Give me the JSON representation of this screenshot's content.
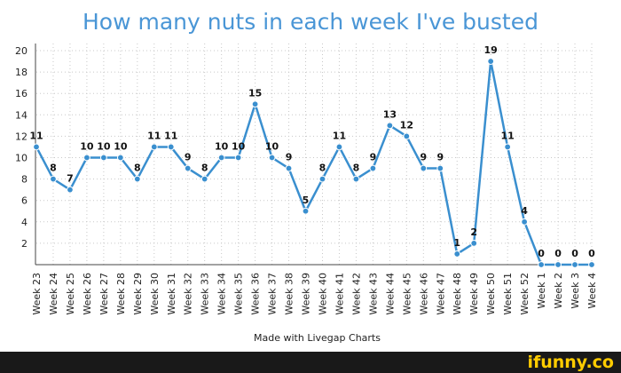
{
  "chart_data": {
    "type": "line",
    "title": "How many nuts in each week I've busted",
    "caption": "Made with Livegap Charts",
    "categories": [
      "Week 23",
      "Week 24",
      "Week 25",
      "Week 26",
      "Week 27",
      "Week 28",
      "Week 29",
      "Week 30",
      "Week 31",
      "Week 32",
      "Week 33",
      "Week 34",
      "Week 35",
      "Week 36",
      "Week 37",
      "Week 38",
      "Week 39",
      "Week 40",
      "Week 41",
      "Week 42",
      "Week 43",
      "Week 44",
      "Week 45",
      "Week 46",
      "Week 47",
      "Week 48",
      "Week 49",
      "Week 50",
      "Week 51",
      "Week 52",
      "Week 1",
      "Week 2",
      "Week 3",
      "Week 4"
    ],
    "values": [
      11,
      8,
      7,
      10,
      10,
      10,
      8,
      11,
      11,
      9,
      8,
      10,
      10,
      15,
      10,
      9,
      5,
      8,
      11,
      8,
      9,
      13,
      12,
      9,
      9,
      1,
      2,
      19,
      11,
      4,
      0,
      0,
      0,
      0
    ],
    "ylim": [
      0,
      20
    ],
    "yticks": [
      2,
      4,
      6,
      8,
      10,
      12,
      14,
      16,
      18,
      20
    ],
    "grid": true,
    "line_color": "#3a8fcf",
    "point_color": "#3a8fcf"
  },
  "footer": {
    "logo": "ifunny.co"
  }
}
